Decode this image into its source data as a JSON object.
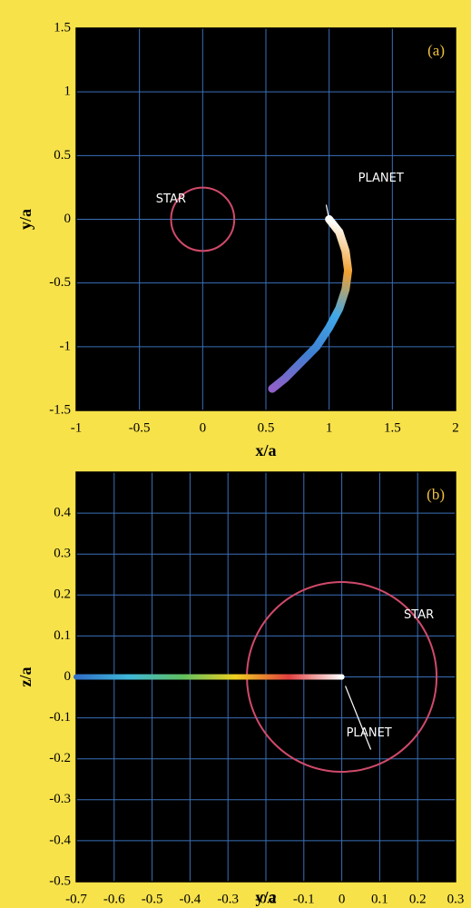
{
  "chart_data": [
    {
      "type": "line",
      "panel_label": "(a)",
      "xlabel": "x/a",
      "ylabel": "y/a",
      "xlim": [
        -1,
        2
      ],
      "ylim": [
        -1.5,
        1.5
      ],
      "xticks": [
        -1,
        -0.5,
        0,
        0.5,
        1,
        1.5,
        2
      ],
      "yticks": [
        -1.5,
        -1,
        -0.5,
        0,
        0.5,
        1,
        1.5
      ],
      "grid": true,
      "x": [
        1.0,
        1.08,
        1.13,
        1.15,
        1.13,
        1.08,
        1.0,
        0.9,
        0.78,
        0.65,
        0.55
      ],
      "series": [
        {
          "values": [
            0,
            -0.1,
            -0.25,
            -0.4,
            -0.55,
            -0.7,
            -0.85,
            -1.0,
            -1.12,
            -1.25,
            -1.33
          ],
          "colors": [
            "#ffffff",
            "#f0a030",
            "#40a8e8",
            "#3f7fd0",
            "#9060c8"
          ]
        }
      ],
      "star": {
        "text": "STAR",
        "x": 0,
        "y": 0,
        "radius": 0.25,
        "color": "#d04a6a"
      },
      "planet": {
        "text": "PLANET",
        "x": 1,
        "y": 0
      }
    },
    {
      "type": "line",
      "panel_label": "(b)",
      "xlabel": "y/a",
      "ylabel": "z/a",
      "xlim": [
        -0.7,
        0.3
      ],
      "ylim": [
        -0.5,
        0.5
      ],
      "xticks": [
        -0.7,
        -0.6,
        -0.5,
        -0.4,
        -0.3,
        -0.2,
        -0.1,
        0,
        0.1,
        0.2,
        0.3
      ],
      "yticks": [
        -0.5,
        -0.4,
        -0.3,
        -0.2,
        -0.1,
        0,
        0.1,
        0.2,
        0.3,
        0.4
      ],
      "grid": true,
      "x": [
        0,
        -0.1,
        -0.2,
        -0.3,
        -0.4,
        -0.5,
        -0.6,
        -0.7
      ],
      "series": [
        {
          "values": [
            0,
            0,
            0,
            0,
            0,
            0,
            0,
            0
          ],
          "colors": [
            "#ffffff",
            "#e04040",
            "#f0d020",
            "#60c060",
            "#40b8d8",
            "#3070c8"
          ]
        }
      ],
      "star": {
        "text": "STAR",
        "x": 0,
        "y": 0,
        "radius": 0.25,
        "color": "#d04a6a"
      },
      "planet": {
        "text": "PLANET",
        "x": 0,
        "y": 0
      }
    }
  ]
}
